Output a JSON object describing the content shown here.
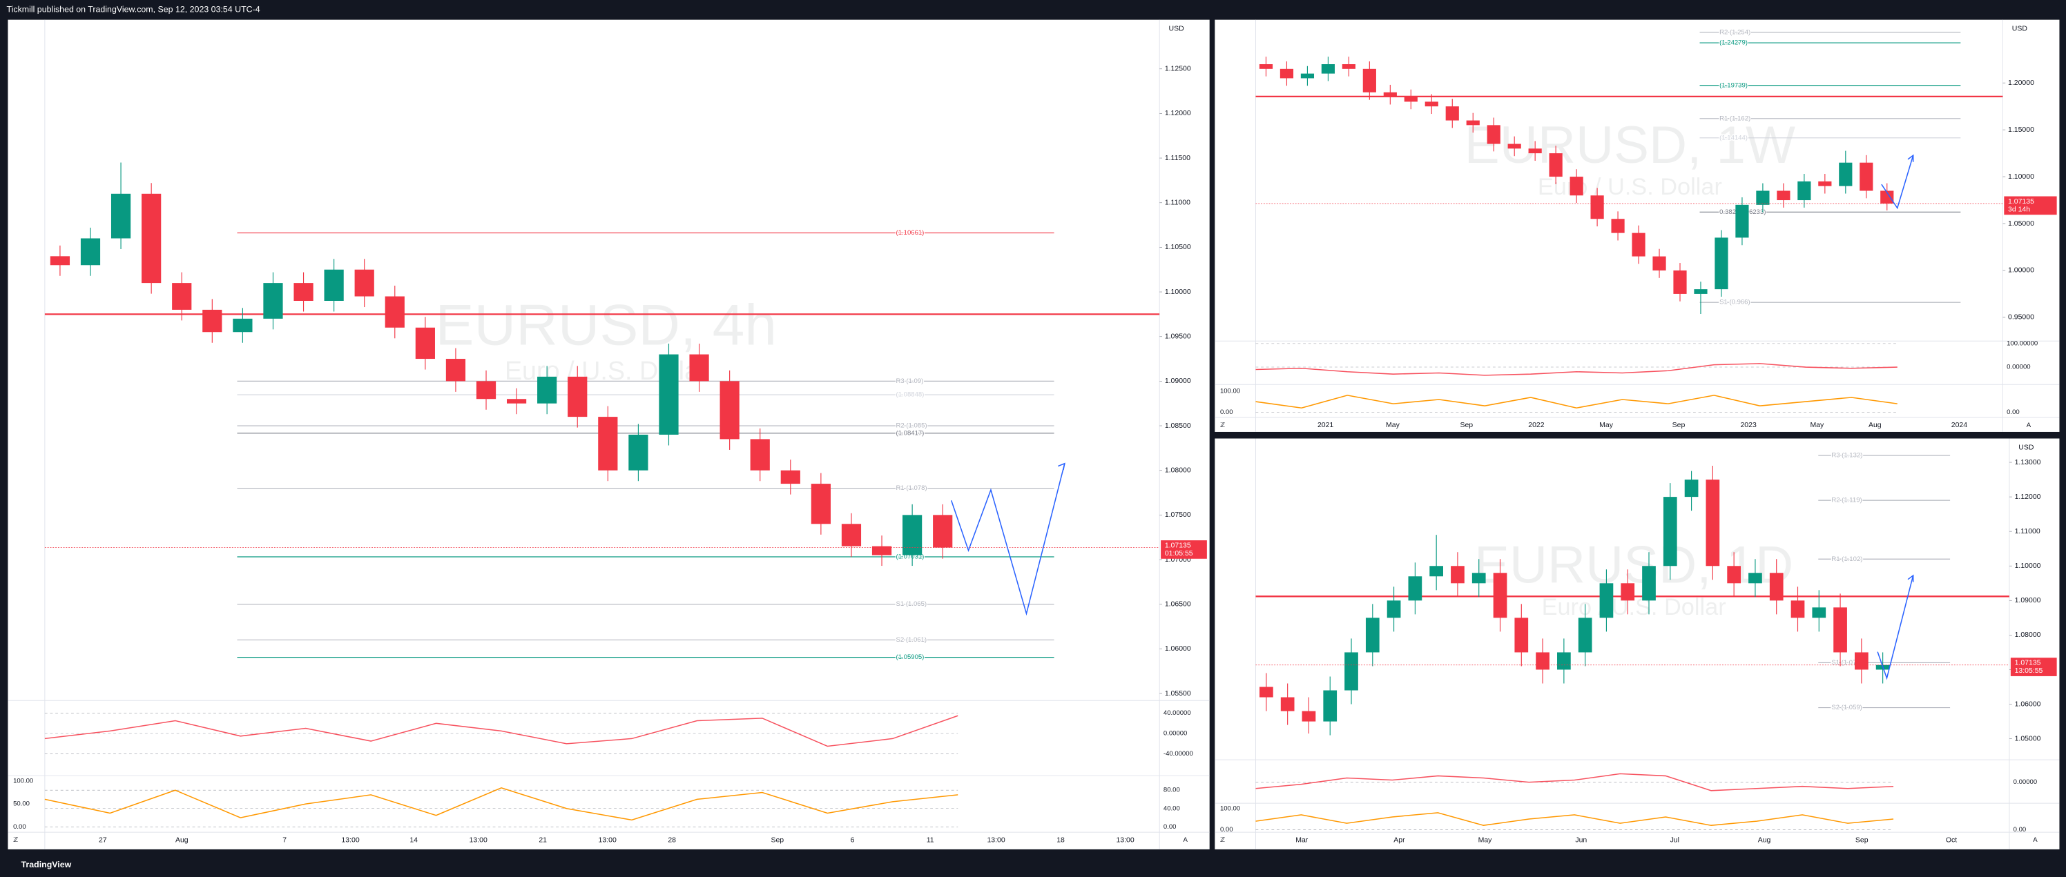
{
  "header": {
    "text": "Tickmill published on TradingView.com, Sep 12, 2023 03:54 UTC-4"
  },
  "footer": {
    "brand": "TradingView"
  },
  "chart_data": [
    {
      "type": "candlestick",
      "watermark": "EURUSD, 4h",
      "subtitle": "Euro / U.S. Dollar",
      "currency": "USD",
      "up_color": "#089981",
      "down_color": "#f23645",
      "ylim": [
        1.0545,
        1.1305
      ],
      "yticks": [
        {
          "value": 1.125,
          "label": "1.12500"
        },
        {
          "value": 1.12,
          "label": "1.12000"
        },
        {
          "value": 1.115,
          "label": "1.11500"
        },
        {
          "value": 1.11,
          "label": "1.11000"
        },
        {
          "value": 1.105,
          "label": "1.10500"
        },
        {
          "value": 1.1,
          "label": "1.10000"
        },
        {
          "value": 1.095,
          "label": "1.09500"
        },
        {
          "value": 1.09,
          "label": "1.09000"
        },
        {
          "value": 1.085,
          "label": "1.08500"
        },
        {
          "value": 1.08,
          "label": "1.08000"
        },
        {
          "value": 1.075,
          "label": "1.07500"
        },
        {
          "value": 1.07,
          "label": "1.07000"
        },
        {
          "value": 1.065,
          "label": "1.06500"
        },
        {
          "value": 1.06,
          "label": "1.06000"
        },
        {
          "value": 1.055,
          "label": "1.05500"
        }
      ],
      "x_labels": [
        "27",
        "Aug",
        "7",
        "13:00",
        "14",
        "13:00",
        "21",
        "13:00",
        "28",
        "Sep",
        "6",
        "11",
        "13:00",
        "18",
        "13:00"
      ],
      "open": [
        1.104,
        1.103,
        1.106,
        1.111,
        1.101,
        1.098,
        1.0955,
        1.097,
        1.101,
        1.099,
        1.1025,
        1.0995,
        1.096,
        1.0925,
        1.09,
        1.088,
        1.0875,
        1.0905,
        1.086,
        1.08,
        1.084,
        1.093,
        1.09,
        1.0835,
        1.08,
        1.0785,
        1.074,
        1.0715,
        1.0705,
        1.075
      ],
      "high": [
        1.1052,
        1.1072,
        1.1145,
        1.1122,
        1.1022,
        1.0992,
        1.0982,
        1.1022,
        1.1022,
        1.1037,
        1.1037,
        1.1007,
        1.0972,
        1.0937,
        1.0912,
        1.0892,
        1.0917,
        1.0917,
        1.0872,
        1.0852,
        1.0942,
        1.0942,
        1.0912,
        1.0847,
        1.0812,
        1.0797,
        1.0752,
        1.0727,
        1.0762,
        1.0762
      ],
      "low": [
        1.1018,
        1.1018,
        1.1048,
        1.0998,
        1.0968,
        1.0943,
        1.0943,
        1.0958,
        1.0978,
        1.0978,
        1.0983,
        1.0948,
        1.0913,
        1.0888,
        1.0868,
        1.0863,
        1.0863,
        1.0848,
        1.0788,
        1.0788,
        1.0828,
        1.0888,
        1.0823,
        1.0788,
        1.0773,
        1.0728,
        1.0703,
        1.0693,
        1.0693,
        1.0701
      ],
      "close": [
        1.103,
        1.106,
        1.111,
        1.101,
        1.098,
        1.0955,
        1.097,
        1.101,
        1.099,
        1.1025,
        1.0995,
        1.096,
        1.0925,
        1.09,
        1.088,
        1.0875,
        1.0905,
        1.086,
        1.08,
        1.084,
        1.093,
        1.09,
        1.0835,
        1.08,
        1.0785,
        1.074,
        1.0715,
        1.0705,
        1.075,
        1.07135
      ],
      "levels": [
        {
          "label": "(1.10661)",
          "value": 1.10661,
          "color": "#f23645"
        },
        {
          "label": "R3 (1.09)",
          "value": 1.09,
          "color": "#b2b5be"
        },
        {
          "label": "(1.08848)",
          "value": 1.08848,
          "color": "#d1d4dc"
        },
        {
          "label": "R2 (1.085)",
          "value": 1.085,
          "color": "#b2b5be"
        },
        {
          "label": "(1.08417)",
          "value": 1.08417,
          "color": "#787b86"
        },
        {
          "label": "R1 (1.078)",
          "value": 1.078,
          "color": "#b2b5be"
        },
        {
          "label": "(1.07031)",
          "value": 1.07031,
          "color": "#089981"
        },
        {
          "label": "S1 (1.065)",
          "value": 1.065,
          "color": "#b2b5be"
        },
        {
          "label": "S2 (1.061)",
          "value": 1.061,
          "color": "#b2b5be"
        },
        {
          "label": "(1.05905)",
          "value": 1.05905,
          "color": "#089981"
        }
      ],
      "hlines": [
        {
          "value": 1.0975,
          "color": "#f23645"
        }
      ],
      "last_price": 1.07135,
      "countdown": "01:05:55",
      "indicator": {
        "ylim": [
          -80,
          62
        ],
        "yticks": [
          {
            "value": 40,
            "label": "40.00000"
          },
          {
            "value": 0,
            "label": "0.00000"
          },
          {
            "value": -40,
            "label": "-40.00000"
          }
        ],
        "values": [
          -10,
          5,
          25,
          -5,
          10,
          -15,
          20,
          5,
          -20,
          -10,
          25,
          30,
          -25,
          -10,
          35
        ],
        "color": "#f7525f"
      },
      "oscillator": {
        "ylim": [
          -6,
          109
        ],
        "yticks": [
          {
            "value": 80,
            "label": "80.00"
          },
          {
            "value": 40,
            "label": "40.00"
          },
          {
            "value": 0,
            "label": "0.00"
          }
        ],
        "left_ticks": [
          {
            "value": 100,
            "label": "100.00"
          },
          {
            "value": 50,
            "label": "50.00"
          },
          {
            "value": 0,
            "label": "0.00"
          }
        ],
        "values": [
          60,
          30,
          80,
          20,
          50,
          70,
          25,
          85,
          40,
          15,
          60,
          75,
          30,
          55,
          70
        ],
        "color": "#ff9800"
      }
    },
    {
      "type": "candlestick",
      "watermark": "EURUSD, 1W",
      "subtitle": "Euro / U.S. Dollar",
      "currency": "USD",
      "up_color": "#089981",
      "down_color": "#f23645",
      "ylim": [
        0.9261,
        1.2674
      ],
      "yticks": [
        {
          "value": 1.2,
          "label": "1.20000"
        },
        {
          "value": 1.15,
          "label": "1.15000"
        },
        {
          "value": 1.1,
          "label": "1.10000"
        },
        {
          "value": 1.05,
          "label": "1.05000"
        },
        {
          "value": 1,
          "label": "1.00000"
        },
        {
          "value": 0.95,
          "label": "0.95000"
        }
      ],
      "x_labels": [
        "2021",
        "May",
        "Sep",
        "2022",
        "May",
        "Sep",
        "2023",
        "May",
        "Aug",
        "2024"
      ],
      "open": [
        1.22,
        1.215,
        1.205,
        1.21,
        1.22,
        1.215,
        1.19,
        1.185,
        1.18,
        1.175,
        1.16,
        1.155,
        1.135,
        1.13,
        1.125,
        1.1,
        1.08,
        1.055,
        1.04,
        1.015,
        1.0,
        0.975,
        0.98,
        1.035,
        1.07,
        1.085,
        1.075,
        1.095,
        1.09,
        1.115,
        1.085
      ],
      "high": [
        1.228,
        1.223,
        1.218,
        1.228,
        1.228,
        1.223,
        1.198,
        1.193,
        1.188,
        1.183,
        1.168,
        1.163,
        1.143,
        1.138,
        1.133,
        1.108,
        1.088,
        1.063,
        1.048,
        1.023,
        1.008,
        0.988,
        1.043,
        1.078,
        1.093,
        1.093,
        1.103,
        1.103,
        1.1276,
        1.123,
        1.093
      ],
      "low": [
        1.207,
        1.197,
        1.197,
        1.202,
        1.207,
        1.182,
        1.177,
        1.172,
        1.167,
        1.152,
        1.147,
        1.127,
        1.122,
        1.117,
        1.092,
        1.072,
        1.047,
        1.032,
        1.007,
        0.992,
        0.967,
        0.9536,
        0.972,
        1.027,
        1.062,
        1.067,
        1.067,
        1.082,
        1.082,
        1.077,
        1.064
      ],
      "close": [
        1.215,
        1.205,
        1.21,
        1.22,
        1.215,
        1.19,
        1.185,
        1.18,
        1.175,
        1.16,
        1.155,
        1.135,
        1.13,
        1.125,
        1.1,
        1.08,
        1.055,
        1.04,
        1.015,
        1.0,
        0.975,
        0.98,
        1.035,
        1.07,
        1.085,
        1.075,
        1.095,
        1.09,
        1.115,
        1.085,
        1.07135
      ],
      "levels": [
        {
          "label": "R2 (1.254)",
          "value": 1.254,
          "color": "#b2b5be"
        },
        {
          "label": "(1.24279)",
          "value": 1.24279,
          "color": "#089981"
        },
        {
          "label": "(1.19739)",
          "value": 1.19739,
          "color": "#089981"
        },
        {
          "label": "R1 (1.162)",
          "value": 1.162,
          "color": "#b2b5be"
        },
        {
          "label": "(1.14144)",
          "value": 1.14144,
          "color": "#d1d4dc"
        },
        {
          "label": "0.382 (1.06233)",
          "value": 1.06233,
          "color": "#787b86"
        },
        {
          "label": "S1 (0.966)",
          "value": 0.966,
          "color": "#b2b5be"
        }
      ],
      "hlines": [
        {
          "value": 1.1855,
          "color": "#f23645"
        }
      ],
      "last_price": 1.07135,
      "countdown": "3d 14h",
      "indicator": {
        "ylim": [
          -74,
          105
        ],
        "yticks": [
          {
            "value": 100,
            "label": "100.00000"
          },
          {
            "value": 0,
            "label": "0.00000"
          }
        ],
        "values": [
          -10,
          -5,
          -20,
          -30,
          -25,
          -35,
          -30,
          -20,
          -25,
          -15,
          10,
          15,
          0,
          -5,
          0
        ],
        "color": "#f7525f"
      },
      "oscillator": {
        "ylim": [
          -31,
          125
        ],
        "yticks": [
          {
            "value": 0,
            "label": "0.00"
          }
        ],
        "left_ticks": [
          {
            "value": 100,
            "label": "100.00"
          },
          {
            "value": 0,
            "label": "0.00"
          }
        ],
        "values": [
          50,
          20,
          80,
          40,
          60,
          30,
          70,
          20,
          60,
          40,
          80,
          30,
          50,
          70,
          40
        ],
        "color": "#ff9800"
      }
    },
    {
      "type": "candlestick",
      "watermark": "EURUSD, 1D",
      "subtitle": "Euro / U.S. Dollar",
      "currency": "USD",
      "up_color": "#089981",
      "down_color": "#f23645",
      "ylim": [
        1.0439,
        1.1369
      ],
      "yticks": [
        {
          "value": 1.13,
          "label": "1.13000"
        },
        {
          "value": 1.12,
          "label": "1.12000"
        },
        {
          "value": 1.11,
          "label": "1.11000"
        },
        {
          "value": 1.1,
          "label": "1.10000"
        },
        {
          "value": 1.09,
          "label": "1.09000"
        },
        {
          "value": 1.08,
          "label": "1.08000"
        },
        {
          "value": 1.07,
          "label": "1.07000"
        },
        {
          "value": 1.06,
          "label": "1.06000"
        },
        {
          "value": 1.05,
          "label": "1.05000"
        }
      ],
      "x_labels": [
        "Mar",
        "Apr",
        "May",
        "Jun",
        "Jul",
        "Aug",
        "Sep",
        "Oct"
      ],
      "open": [
        1.065,
        1.062,
        1.058,
        1.055,
        1.064,
        1.075,
        1.085,
        1.09,
        1.097,
        1.1,
        1.095,
        1.098,
        1.085,
        1.075,
        1.07,
        1.075,
        1.085,
        1.095,
        1.09,
        1.1,
        1.12,
        1.125,
        1.1,
        1.095,
        1.098,
        1.09,
        1.085,
        1.088,
        1.075,
        1.07
      ],
      "high": [
        1.069,
        1.066,
        1.062,
        1.068,
        1.079,
        1.089,
        1.094,
        1.101,
        1.109,
        1.104,
        1.102,
        1.102,
        1.089,
        1.079,
        1.079,
        1.089,
        1.099,
        1.099,
        1.104,
        1.124,
        1.1275,
        1.129,
        1.104,
        1.102,
        1.102,
        1.094,
        1.093,
        1.092,
        1.079,
        1.075
      ],
      "low": [
        1.058,
        1.054,
        1.0515,
        1.051,
        1.06,
        1.071,
        1.081,
        1.086,
        1.093,
        1.091,
        1.091,
        1.081,
        1.071,
        1.066,
        1.066,
        1.071,
        1.081,
        1.086,
        1.086,
        1.096,
        1.116,
        1.096,
        1.091,
        1.091,
        1.086,
        1.081,
        1.081,
        1.071,
        1.066,
        1.066
      ],
      "close": [
        1.062,
        1.058,
        1.055,
        1.064,
        1.075,
        1.085,
        1.09,
        1.097,
        1.1,
        1.095,
        1.098,
        1.085,
        1.075,
        1.07,
        1.075,
        1.085,
        1.095,
        1.09,
        1.1,
        1.12,
        1.125,
        1.1,
        1.095,
        1.098,
        1.09,
        1.085,
        1.088,
        1.075,
        1.07,
        1.07135
      ],
      "levels": [
        {
          "label": "R3 (1.132)",
          "value": 1.132,
          "color": "#b2b5be"
        },
        {
          "label": "R2 (1.119)",
          "value": 1.119,
          "color": "#b2b5be"
        },
        {
          "label": "R1 (1.102)",
          "value": 1.102,
          "color": "#b2b5be"
        },
        {
          "label": "S1 (1.072)",
          "value": 1.072,
          "color": "#b2b5be"
        },
        {
          "label": "S2 (1.059)",
          "value": 1.059,
          "color": "#b2b5be"
        }
      ],
      "hlines": [
        {
          "value": 1.0912,
          "color": "#f23645"
        }
      ],
      "last_price": 1.07135,
      "countdown": "13:05:55",
      "indicator": {
        "ylim": [
          -50,
          50
        ],
        "yticks": [
          {
            "value": 0,
            "label": "0.00000"
          }
        ],
        "values": [
          -15,
          -5,
          10,
          5,
          15,
          10,
          0,
          5,
          20,
          15,
          -20,
          -15,
          -10,
          -15,
          -10
        ],
        "color": "#f7525f"
      },
      "oscillator": {
        "ylim": [
          0,
          119
        ],
        "yticks": [
          {
            "value": 0,
            "label": "0.00"
          }
        ],
        "left_ticks": [
          {
            "value": 100,
            "label": "100.00"
          },
          {
            "value": 0,
            "label": "0.00"
          }
        ],
        "values": [
          40,
          70,
          30,
          60,
          80,
          20,
          50,
          70,
          30,
          60,
          20,
          40,
          70,
          30,
          50
        ],
        "color": "#ff9800"
      }
    }
  ]
}
